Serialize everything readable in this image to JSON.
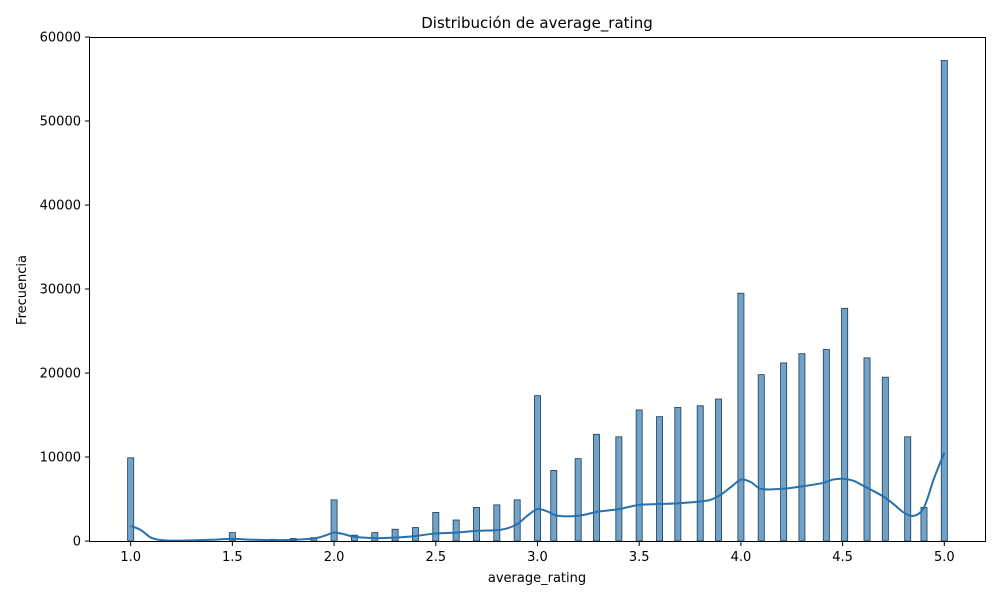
{
  "chart_data": {
    "type": "bar",
    "title": "Distribución de average_rating",
    "xlabel": "average_rating",
    "ylabel": "Frecuencia",
    "xlim": [
      0.8,
      5.2
    ],
    "ylim": [
      0,
      60000
    ],
    "xticks": [
      "1.0",
      "1.5",
      "2.0",
      "2.5",
      "3.0",
      "3.5",
      "4.0",
      "4.5",
      "5.0"
    ],
    "yticks": [
      "0",
      "10000",
      "20000",
      "30000",
      "40000",
      "50000",
      "60000"
    ],
    "bin_width": 0.03,
    "bars": [
      {
        "x": 1.0,
        "count": 9900
      },
      {
        "x": 1.5,
        "count": 1000
      },
      {
        "x": 1.7,
        "count": 200
      },
      {
        "x": 1.8,
        "count": 300
      },
      {
        "x": 1.9,
        "count": 400
      },
      {
        "x": 2.0,
        "count": 4900
      },
      {
        "x": 2.1,
        "count": 700
      },
      {
        "x": 2.2,
        "count": 1000
      },
      {
        "x": 2.3,
        "count": 1400
      },
      {
        "x": 2.4,
        "count": 1600
      },
      {
        "x": 2.5,
        "count": 3400
      },
      {
        "x": 2.6,
        "count": 2500
      },
      {
        "x": 2.7,
        "count": 4000
      },
      {
        "x": 2.8,
        "count": 4300
      },
      {
        "x": 2.9,
        "count": 4900
      },
      {
        "x": 3.0,
        "count": 17300
      },
      {
        "x": 3.08,
        "count": 8400
      },
      {
        "x": 3.2,
        "count": 9800
      },
      {
        "x": 3.29,
        "count": 12700
      },
      {
        "x": 3.4,
        "count": 12400
      },
      {
        "x": 3.5,
        "count": 15600
      },
      {
        "x": 3.6,
        "count": 14800
      },
      {
        "x": 3.69,
        "count": 15900
      },
      {
        "x": 3.8,
        "count": 16100
      },
      {
        "x": 3.89,
        "count": 16900
      },
      {
        "x": 4.0,
        "count": 29500
      },
      {
        "x": 4.1,
        "count": 19800
      },
      {
        "x": 4.21,
        "count": 21200
      },
      {
        "x": 4.3,
        "count": 22300
      },
      {
        "x": 4.42,
        "count": 22800
      },
      {
        "x": 4.51,
        "count": 27700
      },
      {
        "x": 4.62,
        "count": 21800
      },
      {
        "x": 4.71,
        "count": 19500
      },
      {
        "x": 4.82,
        "count": 12400
      },
      {
        "x": 4.9,
        "count": 4000
      },
      {
        "x": 5.0,
        "count": 57200
      }
    ],
    "kde": {
      "x": [
        1.0,
        1.05,
        1.1,
        1.15,
        1.2,
        1.3,
        1.4,
        1.5,
        1.6,
        1.7,
        1.8,
        1.9,
        1.95,
        2.0,
        2.05,
        2.1,
        2.2,
        2.3,
        2.4,
        2.5,
        2.6,
        2.7,
        2.8,
        2.85,
        2.9,
        2.95,
        3.0,
        3.05,
        3.1,
        3.2,
        3.3,
        3.4,
        3.5,
        3.6,
        3.7,
        3.8,
        3.85,
        3.9,
        3.95,
        4.0,
        4.05,
        4.1,
        4.2,
        4.3,
        4.4,
        4.45,
        4.5,
        4.55,
        4.6,
        4.7,
        4.75,
        4.8,
        4.85,
        4.9,
        4.95,
        5.0
      ],
      "y": [
        1800,
        1300,
        400,
        100,
        50,
        80,
        150,
        250,
        150,
        100,
        150,
        300,
        600,
        1000,
        800,
        500,
        350,
        400,
        600,
        900,
        1000,
        1200,
        1300,
        1500,
        2000,
        3000,
        3800,
        3500,
        3000,
        3000,
        3500,
        3800,
        4300,
        4400,
        4500,
        4700,
        4900,
        5500,
        6400,
        7300,
        7000,
        6200,
        6200,
        6500,
        6900,
        7300,
        7400,
        7200,
        6600,
        5300,
        4400,
        3400,
        3000,
        4000,
        7500,
        10500
      ]
    },
    "bar_color": "#6fa3c9",
    "bar_edge_color": "#1f3a52",
    "kde_color": "#2771b0",
    "grid": false,
    "legend": "none"
  }
}
